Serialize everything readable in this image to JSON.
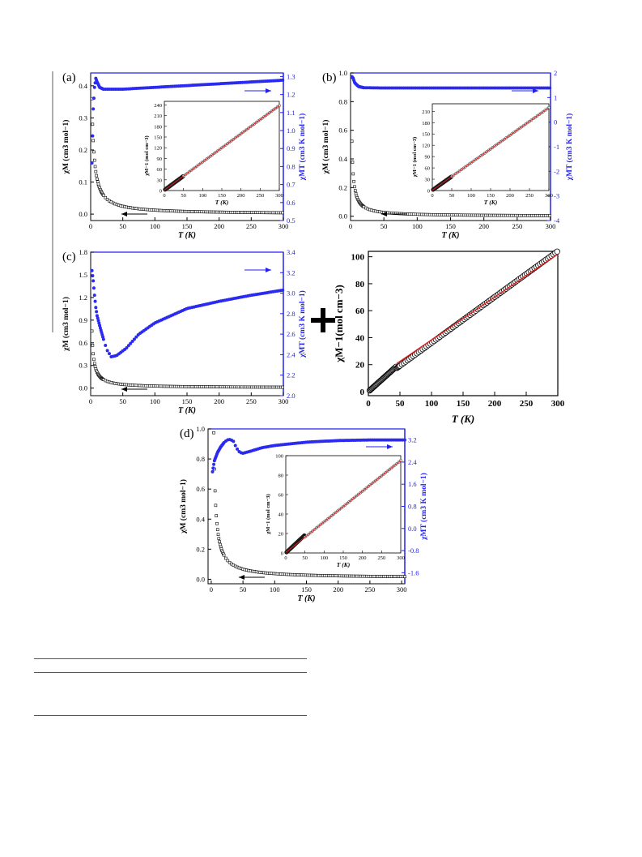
{
  "colors": {
    "left_axis": "#000000",
    "right_axis": "#2222ee",
    "fit_line": "#e02020",
    "circles": "#000000",
    "dots": "#2a2af0"
  },
  "chart_data": [
    {
      "panel_label": "(a)",
      "type": "scatter",
      "xlabel": "T (K)",
      "ylabel_left": "χM (cm3 mol−1)",
      "ylabel_right": "χMT (cm3 K mol−1)",
      "xlim": [
        0,
        300
      ],
      "ylim_left": [
        -0.02,
        0.44
      ],
      "ylim_right": [
        0.5,
        1.32
      ],
      "x_ticks": [
        "0",
        "50",
        "100",
        "150",
        "200",
        "250",
        "300"
      ],
      "y_ticks_left": [
        "0.0",
        "0.1",
        "0.2",
        "0.3",
        "0.4"
      ],
      "y_ticks_right": [
        "0.5",
        "0.6",
        "0.7",
        "0.8",
        "0.9",
        "1.0",
        "1.1",
        "1.2",
        "1.3"
      ],
      "series": [
        {
          "axis": "left",
          "marker": "open-square",
          "model": "curie",
          "C": 1.26,
          "offset": 0.0,
          "theta": 1.5
        },
        {
          "axis": "right",
          "marker": "filled-circle",
          "shape": "peak-then-rise",
          "points": [
            [
              2,
              0.82
            ],
            [
              4,
              1.12
            ],
            [
              6,
              1.24
            ],
            [
              8,
              1.29
            ],
            [
              10,
              1.27
            ],
            [
              14,
              1.24
            ],
            [
              20,
              1.23
            ],
            [
              50,
              1.23
            ],
            [
              100,
              1.24
            ],
            [
              150,
              1.25
            ],
            [
              200,
              1.26
            ],
            [
              250,
              1.27
            ],
            [
              300,
              1.28
            ]
          ]
        }
      ],
      "arrows": [
        "right-axis",
        "left-axis"
      ],
      "inset": {
        "xlabel": "T (K)",
        "ylabel": "χM−1 (mol cm−3)",
        "xlim": [
          0,
          300
        ],
        "ylim": [
          0,
          250
        ],
        "x_ticks": [
          "0",
          "50",
          "100",
          "150",
          "200",
          "250",
          "300"
        ],
        "y_ticks": [
          "0",
          "30",
          "60",
          "90",
          "120",
          "150",
          "180",
          "210",
          "240"
        ],
        "fit": {
          "slope": 0.79,
          "intercept": 1.2
        }
      }
    },
    {
      "panel_label": "(b)",
      "type": "scatter",
      "xlabel": "T (K)",
      "ylabel_left": "χM (cm3 mol−1)",
      "ylabel_right": "χMT (cm3 K mol−1)",
      "xlim": [
        0,
        300
      ],
      "ylim_left": [
        -0.03,
        1.0
      ],
      "ylim_right": [
        -4,
        2
      ],
      "x_ticks": [
        "0",
        "50",
        "100",
        "150",
        "200",
        "250",
        "300"
      ],
      "y_ticks_left": [
        "0.0",
        "0.2",
        "0.4",
        "0.6",
        "0.8",
        "1.0"
      ],
      "y_ticks_right": [
        "-4",
        "-3",
        "-2",
        "-1",
        "0",
        "1",
        "2"
      ],
      "series": [
        {
          "axis": "left",
          "marker": "open-square",
          "model": "curie",
          "C": 1.36,
          "offset": 0.0,
          "theta": 0.6
        },
        {
          "axis": "right",
          "marker": "filled-circle",
          "shape": "flat",
          "points": [
            [
              2,
              1.85
            ],
            [
              4,
              1.78
            ],
            [
              6,
              1.62
            ],
            [
              8,
              1.55
            ],
            [
              12,
              1.45
            ],
            [
              20,
              1.4
            ],
            [
              50,
              1.39
            ],
            [
              100,
              1.39
            ],
            [
              150,
              1.39
            ],
            [
              200,
              1.39
            ],
            [
              250,
              1.39
            ],
            [
              300,
              1.39
            ]
          ]
        }
      ],
      "arrows": [
        "right-axis",
        "left-axis"
      ],
      "inset": {
        "xlabel": "T (K)",
        "ylabel": "χM−1 (mol cm−3)",
        "xlim": [
          0,
          300
        ],
        "ylim": [
          0,
          230
        ],
        "x_ticks": [
          "0",
          "50",
          "100",
          "150",
          "200",
          "250",
          "300"
        ],
        "y_ticks": [
          "0",
          "30",
          "60",
          "90",
          "120",
          "150",
          "180",
          "210"
        ],
        "fit": {
          "slope": 0.73,
          "intercept": 0.8
        }
      }
    },
    {
      "panel_label": "(c)",
      "type": "scatter",
      "xlabel": "T (K)",
      "ylabel_left": "χM (cm3 mol−1)",
      "ylabel_right": "χMT (cm3 K mol−1)",
      "xlim": [
        0,
        300
      ],
      "ylim_left": [
        -0.1,
        1.8
      ],
      "ylim_right": [
        2.0,
        3.4
      ],
      "x_ticks": [
        "0",
        "50",
        "100",
        "150",
        "200",
        "250",
        "300"
      ],
      "y_ticks_left": [
        "0.0",
        "0.3",
        "0.6",
        "0.9",
        "1.2",
        "1.5",
        "1.8"
      ],
      "y_ticks_right": [
        "2.0",
        "2.2",
        "2.4",
        "2.6",
        "2.8",
        "3.0",
        "3.2",
        "3.4"
      ],
      "series": [
        {
          "axis": "left",
          "marker": "open-square",
          "model": "curie",
          "C": 2.25,
          "offset": 0.005,
          "theta": 1.0
        },
        {
          "axis": "right",
          "marker": "filled-circle",
          "shape": "dip-then-rise",
          "points": [
            [
              2,
              3.22
            ],
            [
              4,
              3.12
            ],
            [
              6,
              2.98
            ],
            [
              8,
              2.86
            ],
            [
              10,
              2.78
            ],
            [
              15,
              2.66
            ],
            [
              20,
              2.55
            ],
            [
              25,
              2.45
            ],
            [
              32,
              2.38
            ],
            [
              40,
              2.39
            ],
            [
              55,
              2.46
            ],
            [
              75,
              2.6
            ],
            [
              100,
              2.71
            ],
            [
              125,
              2.78
            ],
            [
              150,
              2.85
            ],
            [
              200,
              2.92
            ],
            [
              250,
              2.98
            ],
            [
              300,
              3.03
            ]
          ]
        }
      ],
      "arrows": [
        "right-axis",
        "left-axis"
      ]
    },
    {
      "panel_label": "",
      "type": "scatter",
      "xlabel": "T (K)",
      "ylabel": "χM−1(mol cm−3)",
      "xlim": [
        0,
        300
      ],
      "ylim": [
        -3,
        104
      ],
      "x_ticks": [
        "0",
        "50",
        "100",
        "150",
        "200",
        "250",
        "300"
      ],
      "y_ticks": [
        "0",
        "20",
        "40",
        "60",
        "80",
        "100"
      ],
      "points_model": {
        "slope": 0.34,
        "intercept": 0,
        "kink_at": 45,
        "low_slope": 0.42
      },
      "fit": {
        "slope": 0.318,
        "intercept": 6.5,
        "from": 45
      }
    },
    {
      "panel_label": "(d)",
      "type": "scatter",
      "xlabel": "T (K)",
      "ylabel_left": "χM (cm3 mol−1)",
      "ylabel_right": "χMT (cm3 K mol−1)",
      "xlim": [
        -5,
        305
      ],
      "ylim_left": [
        -0.03,
        1.0
      ],
      "ylim_right": [
        -2.0,
        3.6
      ],
      "x_ticks": [
        "0",
        "50",
        "100",
        "150",
        "200",
        "250",
        "300"
      ],
      "y_ticks_left": [
        "0.0",
        "0.2",
        "0.4",
        "0.6",
        "0.8",
        "1.0"
      ],
      "y_ticks_right": [
        "-1.6",
        "-0.8",
        "0.0",
        "0.8",
        "1.6",
        "2.4",
        "3.2"
      ],
      "series": [
        {
          "axis": "left",
          "marker": "open-square",
          "model": "curie",
          "C": 2.9,
          "offset": 0.008,
          "theta": -1.0
        },
        {
          "axis": "right",
          "marker": "filled-circle",
          "shape": "bump-then-plateau",
          "points": [
            [
              2,
              2.05
            ],
            [
              5,
              2.45
            ],
            [
              10,
              2.75
            ],
            [
              15,
              2.95
            ],
            [
              20,
              3.1
            ],
            [
              25,
              3.2
            ],
            [
              30,
              3.22
            ],
            [
              35,
              3.15
            ],
            [
              40,
              2.9
            ],
            [
              45,
              2.75
            ],
            [
              50,
              2.72
            ],
            [
              60,
              2.78
            ],
            [
              80,
              2.92
            ],
            [
              100,
              3.0
            ],
            [
              150,
              3.12
            ],
            [
              200,
              3.18
            ],
            [
              250,
              3.2
            ],
            [
              300,
              3.2
            ]
          ]
        }
      ],
      "arrows": [
        "right-axis",
        "left-axis"
      ],
      "inset": {
        "xlabel": "T (K)",
        "ylabel": "χM−1 (mol cm−3)",
        "xlim": [
          0,
          300
        ],
        "ylim": [
          0,
          100
        ],
        "x_ticks": [
          "0",
          "50",
          "100",
          "150",
          "200",
          "250",
          "300"
        ],
        "y_ticks": [
          "0",
          "20",
          "40",
          "60",
          "80",
          "100"
        ],
        "fit": {
          "slope": 0.315,
          "intercept": 0.5
        }
      }
    }
  ]
}
